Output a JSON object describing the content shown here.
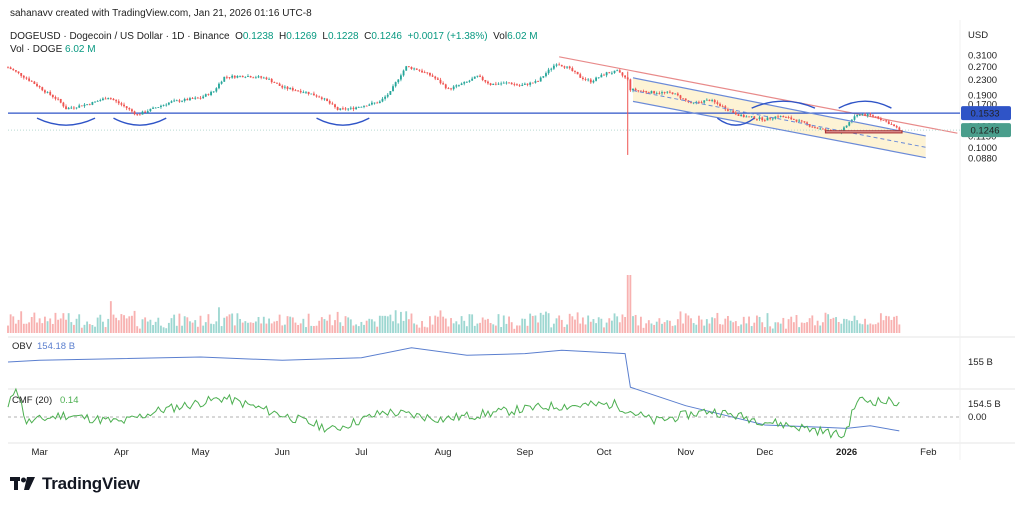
{
  "header": {
    "credit": "sahanavv created with TradingView.com, Jan 21, 2026 01:16 UTC-8",
    "symbol": "DOGEUSD · Dogecoin / US Dollar · 1D · Binance",
    "o_label": "O",
    "o": "0.1238",
    "h_label": "H",
    "h": "0.1269",
    "l_label": "L",
    "l": "0.1228",
    "c_label": "C",
    "c": "0.1246",
    "change": "+0.0017 (+1.38%)",
    "vol_label": "Vol",
    "vol": "6.02 M",
    "vol_doge_label": "Vol · DOGE",
    "vol_doge": "6.02 M"
  },
  "logo": {
    "text": "TradingView"
  },
  "colors": {
    "up": "#26a69a",
    "down": "#ef5350",
    "support": "#2f54c7",
    "resistance": "#e88a8a",
    "channel": "#6a8ad8",
    "channel_fill": "#fdf2d0",
    "obv": "#5b7fcf",
    "cmf": "#4caf50",
    "last_price": "#4a9e8c",
    "level_badge": "#2f54c7"
  },
  "chart_data": [
    {
      "type": "candlestick",
      "title": "DOGEUSD · Dogecoin / US Dollar · 1D · Binance",
      "currency_label": "USD",
      "y_scale": "log",
      "ylim": [
        0.082,
        0.33
      ],
      "y_ticks": [
        "0.3100",
        "0.2700",
        "0.2300",
        "0.1900",
        "0.1700",
        "0.1300",
        "0.1150",
        "0.1000",
        "0.0880"
      ],
      "x_ticks": [
        "Mar",
        "Apr",
        "May",
        "Jun",
        "Jul",
        "Aug",
        "Sep",
        "Oct",
        "Nov",
        "Dec",
        "2026",
        "Feb"
      ],
      "xlim": [
        "2025-02-17",
        "2026-02-13"
      ],
      "close_path": [
        [
          "2025-02-17",
          0.268
        ],
        [
          "2025-02-26",
          0.225
        ],
        [
          "2025-03-03",
          0.2
        ],
        [
          "2025-03-08",
          0.18
        ],
        [
          "2025-03-11",
          0.162
        ],
        [
          "2025-03-20",
          0.172
        ],
        [
          "2025-03-27",
          0.186
        ],
        [
          "2025-04-01",
          0.17
        ],
        [
          "2025-04-07",
          0.15
        ],
        [
          "2025-04-11",
          0.158
        ],
        [
          "2025-04-20",
          0.176
        ],
        [
          "2025-04-25",
          0.18
        ],
        [
          "2025-05-01",
          0.185
        ],
        [
          "2025-05-06",
          0.2
        ],
        [
          "2025-05-10",
          0.238
        ],
        [
          "2025-05-18",
          0.242
        ],
        [
          "2025-05-26",
          0.235
        ],
        [
          "2025-06-01",
          0.21
        ],
        [
          "2025-06-10",
          0.198
        ],
        [
          "2025-06-16",
          0.185
        ],
        [
          "2025-06-22",
          0.16
        ],
        [
          "2025-06-27",
          0.162
        ],
        [
          "2025-07-03",
          0.17
        ],
        [
          "2025-07-08",
          0.176
        ],
        [
          "2025-07-12",
          0.198
        ],
        [
          "2025-07-18",
          0.27
        ],
        [
          "2025-07-22",
          0.262
        ],
        [
          "2025-07-28",
          0.24
        ],
        [
          "2025-08-03",
          0.205
        ],
        [
          "2025-08-10",
          0.224
        ],
        [
          "2025-08-14",
          0.24
        ],
        [
          "2025-08-19",
          0.218
        ],
        [
          "2025-08-26",
          0.222
        ],
        [
          "2025-08-30",
          0.214
        ],
        [
          "2025-09-06",
          0.226
        ],
        [
          "2025-09-10",
          0.258
        ],
        [
          "2025-09-13",
          0.282
        ],
        [
          "2025-09-17",
          0.268
        ],
        [
          "2025-09-22",
          0.238
        ],
        [
          "2025-09-26",
          0.226
        ],
        [
          "2025-10-02",
          0.25
        ],
        [
          "2025-10-06",
          0.255
        ],
        [
          "2025-10-10",
          0.23
        ],
        [
          "2025-10-11",
          0.205
        ],
        [
          "2025-10-18",
          0.198
        ],
        [
          "2025-10-27",
          0.196
        ],
        [
          "2025-11-03",
          0.172
        ],
        [
          "2025-11-10",
          0.18
        ],
        [
          "2025-11-17",
          0.16
        ],
        [
          "2025-11-22",
          0.148
        ],
        [
          "2025-12-01",
          0.142
        ],
        [
          "2025-12-06",
          0.148
        ],
        [
          "2025-12-12",
          0.142
        ],
        [
          "2025-12-19",
          0.13
        ],
        [
          "2025-12-24",
          0.124
        ],
        [
          "2025-12-30",
          0.122
        ],
        [
          "2026-01-03",
          0.142
        ],
        [
          "2026-01-06",
          0.152
        ],
        [
          "2026-01-12",
          0.147
        ],
        [
          "2026-01-17",
          0.136
        ],
        [
          "2026-01-21",
          0.1246
        ]
      ],
      "last_price": "0.1246",
      "support_level": {
        "value": 0.1533,
        "label": "0.1533"
      },
      "resistance_trendline": [
        [
          "2025-09-14",
          0.305
        ],
        [
          "2026-02-12",
          0.12
        ]
      ],
      "descending_channel": {
        "upper": [
          [
            "2025-10-12",
            0.236
          ],
          [
            "2026-01-31",
            0.116
          ]
        ],
        "middle": [
          [
            "2025-10-12",
            0.202
          ],
          [
            "2026-01-31",
            0.101
          ]
        ],
        "lower": [
          [
            "2025-10-12",
            0.177
          ],
          [
            "2026-01-31",
            0.089
          ]
        ]
      },
      "demand_zone": {
        "from": "2025-12-24",
        "to": "2026-01-22",
        "low": 0.1205,
        "high": 0.1235
      }
    },
    {
      "type": "bar",
      "name": "Volume",
      "description": "daily volume bars; spike around 2025-10-10"
    },
    {
      "type": "line",
      "name": "OBV",
      "legend": "OBV",
      "last_value": "154.18 B",
      "y_ticks": [
        "155 B",
        "154.5 B"
      ],
      "ylim": [
        154.05,
        155.25
      ],
      "points": [
        [
          "2025-02-17",
          155.0
        ],
        [
          "2025-03-01",
          155.02
        ],
        [
          "2025-04-01",
          155.04
        ],
        [
          "2025-05-01",
          155.06
        ],
        [
          "2025-06-01",
          155.02
        ],
        [
          "2025-07-01",
          155.05
        ],
        [
          "2025-07-20",
          155.17
        ],
        [
          "2025-08-10",
          155.08
        ],
        [
          "2025-09-01",
          155.1
        ],
        [
          "2025-09-15",
          155.14
        ],
        [
          "2025-10-09",
          155.1
        ],
        [
          "2025-10-11",
          154.7
        ],
        [
          "2025-11-01",
          154.48
        ],
        [
          "2025-12-01",
          154.25
        ],
        [
          "2025-12-25",
          154.22
        ],
        [
          "2026-01-01",
          154.21
        ],
        [
          "2026-01-10",
          154.24
        ],
        [
          "2026-01-21",
          154.18
        ]
      ]
    },
    {
      "type": "line",
      "name": "CMF",
      "legend": "CMF (20)",
      "last_value": "0.14",
      "y_ticks": [
        "0.00"
      ],
      "ylim": [
        -0.3,
        0.35
      ],
      "points": [
        [
          "2025-02-17",
          0.08
        ],
        [
          "2025-02-20",
          0.3
        ],
        [
          "2025-02-24",
          -0.05
        ],
        [
          "2025-03-10",
          0.02
        ],
        [
          "2025-04-01",
          -0.05
        ],
        [
          "2025-04-15",
          0.06
        ],
        [
          "2025-05-10",
          0.18
        ],
        [
          "2025-06-01",
          0.02
        ],
        [
          "2025-06-20",
          -0.12
        ],
        [
          "2025-07-10",
          0.05
        ],
        [
          "2025-08-01",
          -0.02
        ],
        [
          "2025-08-20",
          0.04
        ],
        [
          "2025-09-10",
          0.1
        ],
        [
          "2025-10-05",
          0.12
        ],
        [
          "2025-10-20",
          -0.04
        ],
        [
          "2025-11-10",
          0.06
        ],
        [
          "2025-12-01",
          -0.04
        ],
        [
          "2025-12-20",
          -0.12
        ],
        [
          "2025-12-31",
          -0.18
        ],
        [
          "2026-01-05",
          0.16
        ],
        [
          "2026-01-21",
          0.14
        ]
      ]
    }
  ]
}
